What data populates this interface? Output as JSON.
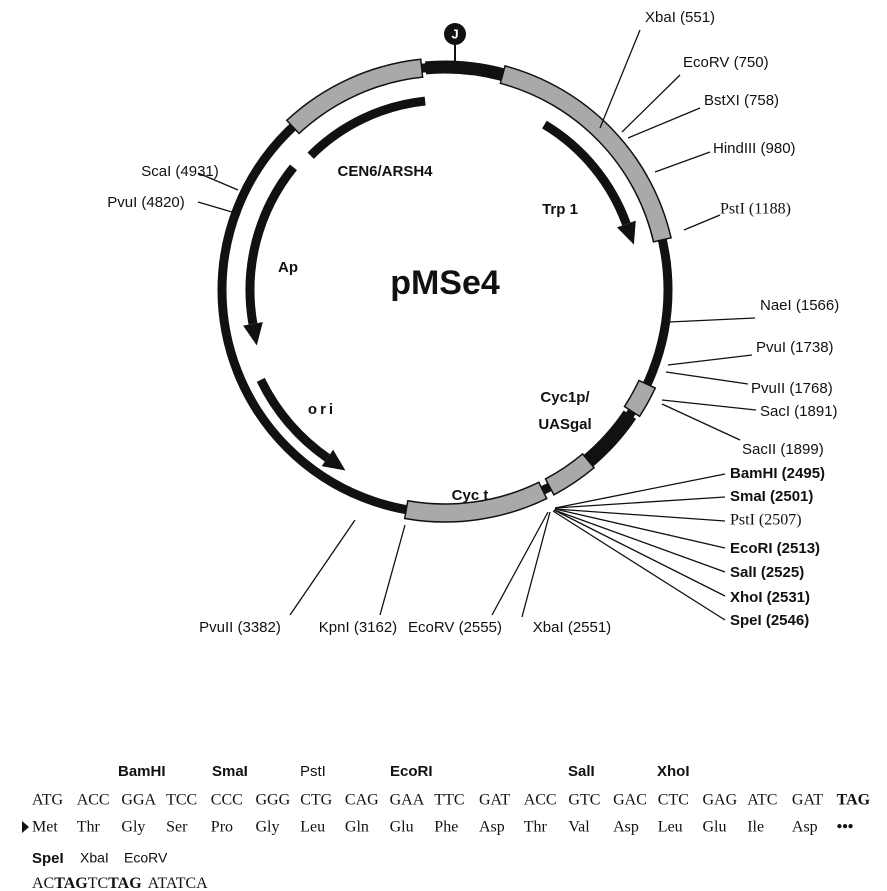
{
  "title": "pMSe4",
  "marker": "J",
  "features": [
    [
      "CEN6/ARSH4"
    ],
    [
      "Trp 1"
    ],
    [
      "Ap"
    ],
    [
      "ori"
    ],
    [
      "Cyc1p/",
      "UASgal"
    ],
    [
      "Cyc t"
    ]
  ],
  "sites": [
    "XbaI (551)",
    "EcoRV (750)",
    "BstXI (758)",
    "HindIII (980)",
    "PstI (1188)",
    "NaeI (1566)",
    "PvuI (1738)",
    "PvuII (1768)",
    "SacI (1891)",
    "SacII (1899)",
    "BamHI (2495)",
    "SmaI (2501)",
    "PstI (2507)",
    "EcoRI (2513)",
    "SalI (2525)",
    "XhoI (2531)",
    "SpeI (2546)",
    "XbaI (2551)",
    "EcoRV (2555)",
    "KpnI (3162)",
    "PvuII (3382)",
    "PvuI (4820)",
    "ScaI (4931)"
  ],
  "sequence": {
    "enzymes": [
      "BamHI",
      "SmaI",
      "PstI",
      "EcoRI",
      "SalI",
      "XhoI"
    ],
    "codons": [
      "ATG",
      "ACC",
      "GGA",
      "TCC",
      "CCC",
      "GGG",
      "CTG",
      "CAG",
      "GAA",
      "TTC",
      "GAT",
      "ACC",
      "GTC",
      "GAC",
      "CTC",
      "GAG",
      "ATC",
      "GAT",
      "TAG"
    ],
    "amino_acids": [
      "Met",
      "Thr",
      "Gly",
      "Ser",
      "Pro",
      "Gly",
      "Leu",
      "Gln",
      "Glu",
      "Phe",
      "Asp",
      "Thr",
      "Val",
      "Asp",
      "Leu",
      "Glu",
      "Ile",
      "Asp",
      "•••"
    ],
    "enzymes2": [
      "SpeI",
      "XbaI",
      "EcoRV"
    ],
    "tail": [
      "AC",
      "TAG",
      "TC",
      "TAG",
      "ATATCA"
    ]
  }
}
